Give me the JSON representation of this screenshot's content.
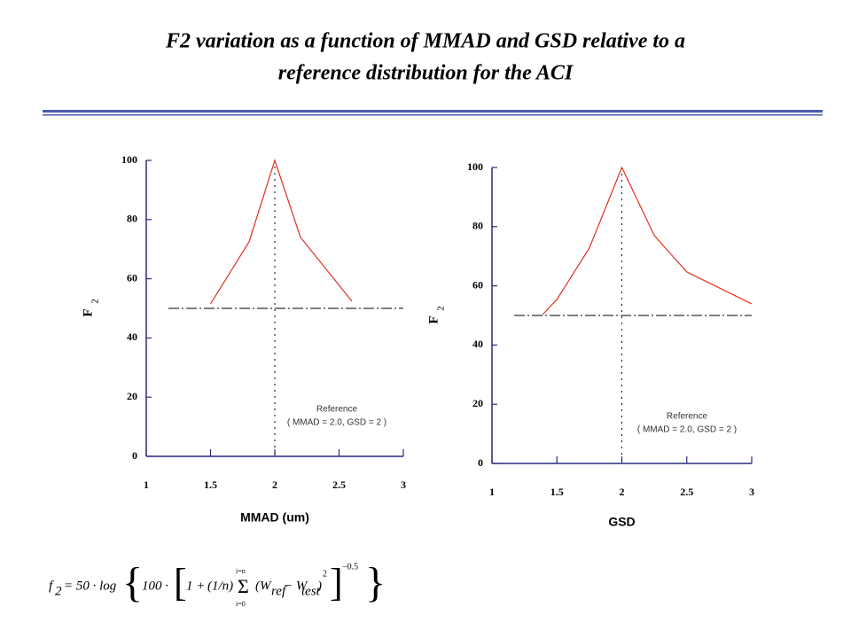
{
  "title": [
    "F2 variation as a function of MMAD and GSD relative to a",
    "reference distribution for the ACI"
  ],
  "chart_data": [
    {
      "type": "line",
      "xlabel": "MMAD (um)",
      "ylabel": "F",
      "ylabel_sub": "2",
      "x": [
        1.5,
        1.8,
        2.0,
        2.2,
        2.6
      ],
      "series": [
        {
          "color": "#e0301e",
          "values": [
            51.5,
            72.5,
            100,
            74,
            52.4
          ]
        }
      ],
      "xlim": [
        1,
        3
      ],
      "xticks": [
        1,
        1.5,
        2,
        2.5,
        3
      ],
      "ylim": [
        0,
        100
      ],
      "yticks": [
        0,
        20,
        40,
        60,
        80,
        100
      ],
      "ref_x": 2,
      "ref_y": 50,
      "annotation": [
        "Reference",
        "( MMAD = 2.0, GSD = 2 )"
      ]
    },
    {
      "type": "line",
      "xlabel": "GSD",
      "ylabel": "F",
      "ylabel_sub": "2",
      "x": [
        1.39,
        1.5,
        1.75,
        2.0,
        2.25,
        2.5,
        3.0
      ],
      "series": [
        {
          "color": "#e0301e",
          "values": [
            50.3,
            55.4,
            72.8,
            100,
            77,
            64.7,
            53.9
          ]
        }
      ],
      "xlim": [
        1,
        3
      ],
      "xticks": [
        1,
        1.5,
        2,
        2.5,
        3
      ],
      "ylim": [
        0,
        100
      ],
      "yticks": [
        0,
        20,
        40,
        60,
        80,
        100
      ],
      "ref_x": 2,
      "ref_y": 50,
      "annotation": [
        "Reference",
        "( MMAD = 2.0, GSD = 2 )"
      ]
    }
  ],
  "formula": {
    "lhs": "f",
    "lhs_sub": "2",
    "eq": "= 50 · log",
    "hundred": "100 ·",
    "one": "1 +",
    "frac": "(1/n)",
    "sigma": "Σ",
    "upper": "i=n",
    "lower": "i=0",
    "w1": "(W",
    "ref": "ref",
    "minus": "− W",
    "test": "test",
    "close": ")",
    "sq": "2",
    "exp": "−0.5"
  }
}
